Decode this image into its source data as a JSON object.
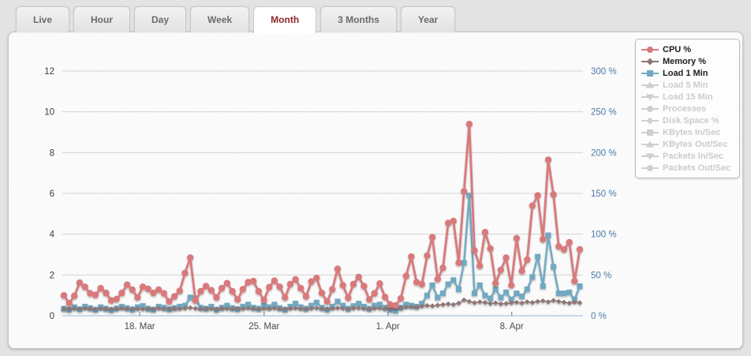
{
  "tabs": {
    "items": [
      {
        "label": "Live",
        "active": false
      },
      {
        "label": "Hour",
        "active": false
      },
      {
        "label": "Day",
        "active": false
      },
      {
        "label": "Week",
        "active": false
      },
      {
        "label": "Month",
        "active": true
      },
      {
        "label": "3 Months",
        "active": false
      },
      {
        "label": "Year",
        "active": false
      }
    ]
  },
  "colors": {
    "cpu": "#d8797b",
    "memory": "#8f7576",
    "load1": "#6fa9c1",
    "inactive": "#cfcfcf",
    "grid": "#d2d2d2",
    "baseline": "#aac4da",
    "left_axis_text": "#3c3c3c",
    "right_axis_text": "#4b79a7",
    "x_axis_text": "#4a4a4a",
    "active_tab_text": "#8e262b"
  },
  "legend": {
    "items": [
      {
        "label": "CPU %",
        "marker": "circle",
        "color": "#d8797b",
        "active": true
      },
      {
        "label": "Memory %",
        "marker": "diamond",
        "color": "#8f7576",
        "active": true
      },
      {
        "label": "Load 1 Min",
        "marker": "square",
        "color": "#6fa9c1",
        "active": true
      },
      {
        "label": "Load 5 Min",
        "marker": "triangle-up",
        "color": "#cfcfcf",
        "active": false
      },
      {
        "label": "Load 15 Min",
        "marker": "triangle-down",
        "color": "#cfcfcf",
        "active": false
      },
      {
        "label": "Processes",
        "marker": "circle",
        "color": "#cfcfcf",
        "active": false
      },
      {
        "label": "Disk Space %",
        "marker": "diamond",
        "color": "#cfcfcf",
        "active": false
      },
      {
        "label": "KBytes In/Sec",
        "marker": "square",
        "color": "#cfcfcf",
        "active": false
      },
      {
        "label": "KBytes Out/Sec",
        "marker": "triangle-up",
        "color": "#cfcfcf",
        "active": false
      },
      {
        "label": "Packets In/Sec",
        "marker": "triangle-down",
        "color": "#cfcfcf",
        "active": false
      },
      {
        "label": "Packets Out/Sec",
        "marker": "circle",
        "color": "#cfcfcf",
        "active": false
      }
    ]
  },
  "chart_data": {
    "type": "line",
    "title": "",
    "x_axis": {
      "tick_labels": [
        "18. Mar",
        "25. Mar",
        "1. Apr",
        "8. Apr"
      ],
      "tick_positions": [
        0.147,
        0.388,
        0.628,
        0.868
      ],
      "range_note": "approx 14 Mar to 12 Apr, 3 samples per day"
    },
    "y_axis_left": {
      "ticks": [
        0,
        2,
        4,
        6,
        8,
        10,
        12
      ],
      "range": [
        0,
        12
      ]
    },
    "y_axis_right": {
      "ticks": [
        "0 %",
        "50 %",
        "100 %",
        "150 %",
        "200 %",
        "250 %",
        "300 %"
      ],
      "range": [
        0,
        300
      ]
    },
    "grid": true,
    "legend_position": "top-right",
    "series": [
      {
        "name": "CPU %",
        "color": "#d8797b",
        "marker": "circle",
        "axis": "right",
        "values": [
          1.0,
          0.62,
          0.98,
          1.62,
          1.42,
          1.1,
          1.02,
          1.35,
          1.12,
          0.75,
          0.82,
          1.12,
          1.52,
          1.28,
          0.9,
          1.42,
          1.32,
          1.12,
          1.28,
          1.1,
          0.7,
          0.95,
          1.22,
          2.1,
          2.85,
          0.75,
          1.2,
          1.45,
          1.25,
          0.9,
          1.35,
          1.6,
          1.2,
          0.8,
          1.3,
          1.65,
          1.7,
          1.2,
          0.78,
          1.4,
          1.72,
          1.42,
          0.9,
          1.55,
          1.78,
          1.35,
          0.95,
          1.68,
          1.85,
          1.12,
          0.7,
          1.3,
          2.3,
          1.5,
          0.88,
          1.55,
          1.9,
          1.45,
          0.8,
          1.1,
          1.58,
          0.92,
          0.55,
          0.5,
          0.85,
          1.95,
          2.9,
          1.65,
          1.55,
          2.95,
          3.85,
          1.8,
          2.35,
          4.55,
          4.65,
          2.6,
          6.1,
          9.4,
          3.2,
          2.45,
          4.1,
          3.3,
          1.6,
          2.25,
          2.85,
          1.5,
          3.8,
          2.2,
          2.75,
          5.4,
          5.9,
          3.75,
          7.65,
          5.95,
          3.4,
          3.25,
          3.6,
          1.7,
          3.25
        ]
      },
      {
        "name": "Memory %",
        "color": "#8f7576",
        "marker": "diamond",
        "axis": "right",
        "values": [
          0.35,
          0.33,
          0.36,
          0.34,
          0.37,
          0.35,
          0.33,
          0.36,
          0.35,
          0.33,
          0.35,
          0.37,
          0.34,
          0.36,
          0.35,
          0.33,
          0.36,
          0.34,
          0.37,
          0.35,
          0.34,
          0.36,
          0.35,
          0.37,
          0.4,
          0.36,
          0.34,
          0.36,
          0.35,
          0.33,
          0.36,
          0.35,
          0.34,
          0.36,
          0.35,
          0.37,
          0.36,
          0.34,
          0.35,
          0.36,
          0.37,
          0.35,
          0.34,
          0.36,
          0.37,
          0.35,
          0.34,
          0.36,
          0.38,
          0.35,
          0.34,
          0.36,
          0.38,
          0.36,
          0.35,
          0.37,
          0.38,
          0.36,
          0.34,
          0.36,
          0.37,
          0.35,
          0.34,
          0.38,
          0.4,
          0.42,
          0.45,
          0.44,
          0.47,
          0.5,
          0.48,
          0.52,
          0.55,
          0.58,
          0.55,
          0.62,
          0.78,
          0.7,
          0.64,
          0.68,
          0.65,
          0.6,
          0.63,
          0.58,
          0.6,
          0.63,
          0.66,
          0.62,
          0.68,
          0.65,
          0.7,
          0.73,
          0.68,
          0.75,
          0.7,
          0.66,
          0.62,
          0.67,
          0.64
        ]
      },
      {
        "name": "Load 1 Min",
        "color": "#6fa9c1",
        "marker": "square",
        "axis": "left",
        "values": [
          0.35,
          0.3,
          0.42,
          0.32,
          0.45,
          0.38,
          0.3,
          0.42,
          0.35,
          0.28,
          0.36,
          0.45,
          0.38,
          0.3,
          0.42,
          0.48,
          0.35,
          0.3,
          0.45,
          0.4,
          0.32,
          0.38,
          0.45,
          0.5,
          0.9,
          0.85,
          0.4,
          0.35,
          0.45,
          0.3,
          0.4,
          0.5,
          0.38,
          0.32,
          0.45,
          0.55,
          0.4,
          0.35,
          0.5,
          0.42,
          0.55,
          0.38,
          0.3,
          0.45,
          0.6,
          0.42,
          0.35,
          0.5,
          0.65,
          0.4,
          0.3,
          0.45,
          0.7,
          0.5,
          0.35,
          0.48,
          0.6,
          0.45,
          0.35,
          0.5,
          0.55,
          0.4,
          0.3,
          0.25,
          0.4,
          0.55,
          0.5,
          0.45,
          0.6,
          1.0,
          1.5,
          0.9,
          1.1,
          1.55,
          1.75,
          1.3,
          2.6,
          5.9,
          1.1,
          1.5,
          1.0,
          0.85,
          1.3,
          0.9,
          1.15,
          0.8,
          1.1,
          0.95,
          1.3,
          1.9,
          2.9,
          1.45,
          3.95,
          2.4,
          1.1,
          1.1,
          1.15,
          0.8,
          1.45
        ]
      }
    ],
    "inactive_series": [
      "Load 5 Min",
      "Load 15 Min",
      "Processes",
      "Disk Space %",
      "KBytes In/Sec",
      "KBytes Out/Sec",
      "Packets In/Sec",
      "Packets Out/Sec"
    ]
  }
}
